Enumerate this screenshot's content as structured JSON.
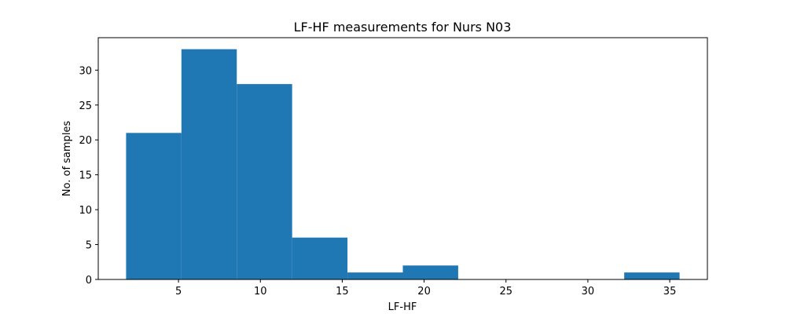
{
  "chart_data": {
    "type": "bar",
    "title": "LF-HF measurements for Nurs N03",
    "xlabel": "LF-HF",
    "ylabel": "No. of samples",
    "bin_edges": [
      1.8,
      5.18,
      8.56,
      11.94,
      15.32,
      18.7,
      22.08,
      25.46,
      28.84,
      32.22,
      35.6
    ],
    "counts": [
      21,
      33,
      28,
      6,
      1,
      2,
      0,
      0,
      0,
      1
    ],
    "xlim": [
      0.1,
      37.3
    ],
    "ylim": [
      0,
      34.65
    ],
    "xticks": [
      5,
      10,
      15,
      20,
      25,
      30,
      35
    ],
    "yticks": [
      0,
      5,
      10,
      15,
      20,
      25,
      30
    ],
    "bar_color": "#1f77b4",
    "grid": false
  }
}
